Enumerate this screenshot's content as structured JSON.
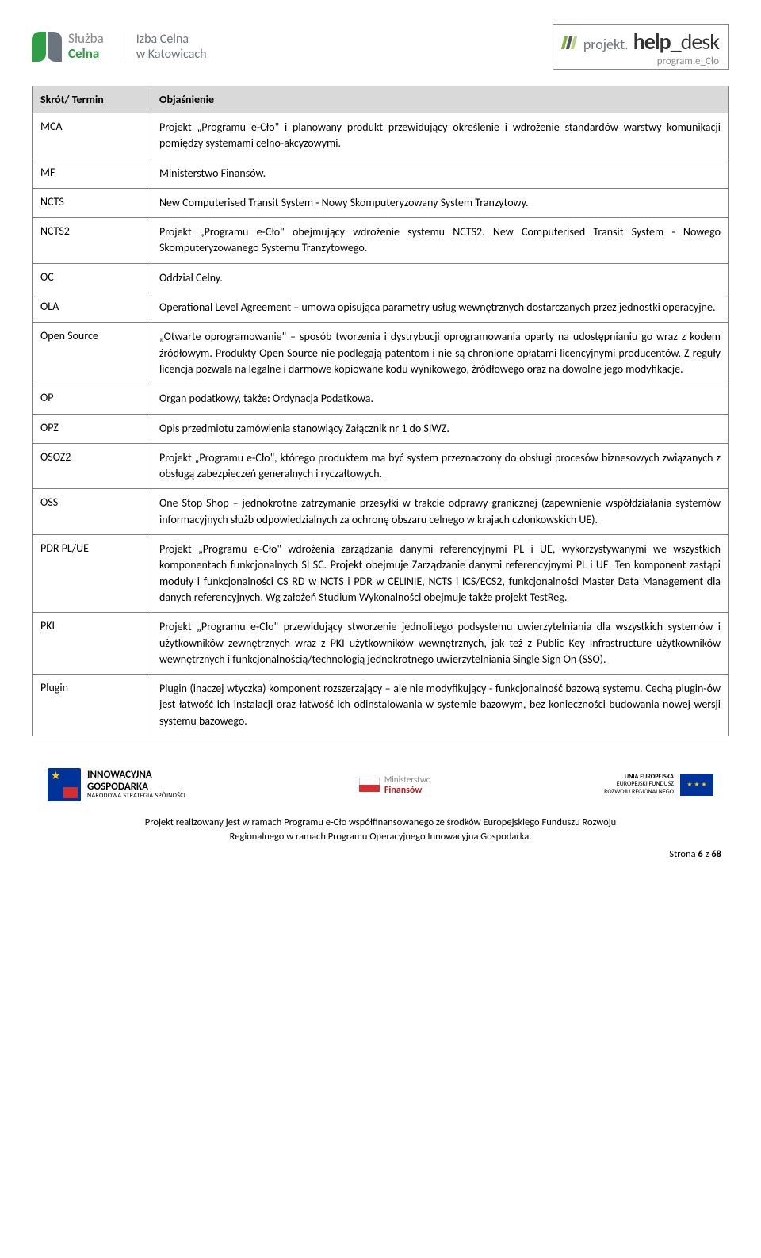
{
  "header": {
    "logo1_line1": "Służba",
    "logo1_line2": "Celna",
    "logo2_line1": "Izba Celna",
    "logo2_line2": "w Katowicach",
    "helpdesk_prefix": "projekt.",
    "helpdesk_main1": "help",
    "helpdesk_main2": "_desk",
    "helpdesk_sub": "program.e_Cło"
  },
  "table": {
    "col1": "Skrót/ Termin",
    "col2": "Objaśnienie",
    "rows": [
      {
        "term": "MCA",
        "desc": "Projekt „Programu e-Cło\" i planowany produkt przewidujący określenie i wdrożenie standardów warstwy komunikacji pomiędzy systemami celno-akcyzowymi."
      },
      {
        "term": "MF",
        "desc": "Ministerstwo Finansów."
      },
      {
        "term": "NCTS",
        "desc": "New Computerised Transit System - Nowy Skomputeryzowany System Tranzytowy."
      },
      {
        "term": "NCTS2",
        "desc": "Projekt „Programu e-Cło\" obejmujący wdrożenie systemu NCTS2. New Computerised Transit System - Nowego Skomputeryzowanego Systemu Tranzytowego."
      },
      {
        "term": "OC",
        "desc": "Oddział Celny."
      },
      {
        "term": "OLA",
        "desc": "Operational Level Agreement – umowa opisująca parametry usług wewnętrznych dostarczanych przez jednostki operacyjne."
      },
      {
        "term": "Open Source",
        "desc": "„Otwarte oprogramowanie\" – sposób tworzenia i dystrybucji oprogramowania oparty na udostępnianiu go wraz z kodem źródłowym. Produkty Open Source nie podlegają patentom i nie są chronione opłatami licencyjnymi producentów. Z reguły licencja pozwala na legalne i darmowe kopiowane kodu wynikowego, źródłowego oraz na dowolne jego modyfikacje."
      },
      {
        "term": "OP",
        "desc": "Organ podatkowy, także: Ordynacja Podatkowa."
      },
      {
        "term": "OPZ",
        "desc": "Opis przedmiotu zamówienia stanowiący Załącznik nr 1 do SIWZ."
      },
      {
        "term": "OSOZ2",
        "desc": "Projekt „Programu e-Cło\", którego produktem ma być system przeznaczony do obsługi procesów biznesowych związanych z obsługą zabezpieczeń generalnych i ryczałtowych."
      },
      {
        "term": "OSS",
        "desc": "One Stop Shop – jednokrotne zatrzymanie przesyłki w trakcie odprawy granicznej (zapewnienie współdziałania systemów informacyjnych służb odpowiedzialnych za ochronę obszaru celnego w krajach członkowskich UE)."
      },
      {
        "term": "PDR PL/UE",
        "desc": "Projekt „Programu e-Cło\" wdrożenia zarządzania danymi referencyjnymi PL i UE, wykorzystywanymi we wszystkich komponentach funkcjonalnych SI SC. Projekt obejmuje Zarządzanie danymi referencyjnymi PL i UE. Ten komponent zastąpi moduły i funkcjonalności CS RD w NCTS i PDR w CELINIE, NCTS i ICS/ECS2, funkcjonalności Master Data Management dla danych referencyjnych. Wg założeń Studium Wykonalności obejmuje także projekt TestReg."
      },
      {
        "term": "PKI",
        "desc": "Projekt „Programu e-Cło\" przewidujący stworzenie jednolitego podsystemu uwierzytelniania dla wszystkich systemów i użytkowników zewnętrznych wraz z PKI użytkowników wewnętrznych, jak też z Public Key Infrastructure użytkowników wewnętrznych i funkcjonalnością/technologią jednokrotnego uwierzytelniania Single Sign On (SSO)."
      },
      {
        "term": "Plugin",
        "desc": "Plugin (inaczej wtyczka) komponent rozszerzający – ale nie modyfikujący - funkcjonalność bazową systemu. Cechą plugin-ów jest łatwość ich instalacji oraz łatwość ich odinstalowania w systemie bazowym, bez konieczności budowania nowej wersji systemu bazowego."
      }
    ]
  },
  "footer": {
    "ig_line1": "INNOWACYJNA",
    "ig_line2": "GOSPODARKA",
    "ig_line3": "NARODOWA STRATEGIA SPÓJNOŚCI",
    "mf_line1": "Ministerstwo",
    "mf_line2": "Finansów",
    "eu_line1": "UNIA EUROPEJSKA",
    "eu_line2": "EUROPEJSKI FUNDUSZ",
    "eu_line3": "ROZWOJU REGIONALNEGO",
    "text_line1": "Projekt realizowany jest w ramach Programu e-Cło współfinansowanego ze środków Europejskiego Funduszu Rozwoju",
    "text_line2": "Regionalnego w ramach Programu Operacyjnego Innowacyjna Gospodarka.",
    "page_label": "Strona ",
    "page_current": "6",
    "page_sep": " z ",
    "page_total": "68"
  }
}
